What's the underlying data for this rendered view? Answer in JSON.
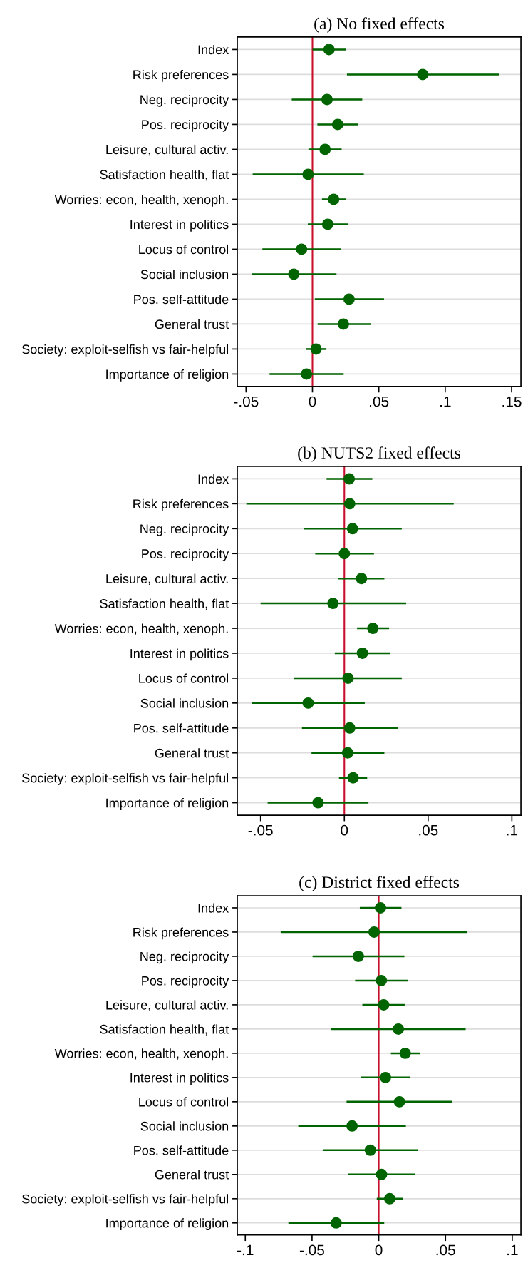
{
  "chart_data": [
    {
      "type": "scatter",
      "orientation": "horizontal",
      "title": "(a) No fixed effects",
      "categories": [
        "Index",
        "Risk preferences",
        "Neg. reciprocity",
        "Pos. reciprocity",
        "Leisure, cultural activ.",
        "Satisfaction health, flat",
        "Worries: econ, health, xenoph.",
        "Interest in politics",
        "Locus of control",
        "Social inclusion",
        "Pos. self-attitude",
        "General trust",
        "Society: exploit-selfish vs fair-helpful",
        "Importance of religion"
      ],
      "series": [
        {
          "color": "#006400",
          "values": [
            0.0125,
            0.083,
            0.011,
            0.019,
            0.0095,
            -0.0033,
            0.016,
            0.0115,
            -0.0082,
            -0.014,
            0.0276,
            0.0233,
            0.0027,
            -0.0045
          ],
          "errors": [
            [
              0.0,
              0.0255
            ],
            [
              0.026,
              0.1407
            ],
            [
              -0.0156,
              0.0375
            ],
            [
              0.0037,
              0.0344
            ],
            [
              -0.003,
              0.022
            ],
            [
              -0.045,
              0.0387
            ],
            [
              0.0072,
              0.025
            ],
            [
              -0.0035,
              0.0268
            ],
            [
              -0.0377,
              0.0216
            ],
            [
              -0.0457,
              0.0181
            ],
            [
              0.0018,
              0.0539
            ],
            [
              0.0039,
              0.0438
            ],
            [
              -0.0049,
              0.0105
            ],
            [
              -0.0323,
              0.0235
            ]
          ]
        }
      ],
      "xlim": [
        -0.0566,
        0.157
      ],
      "xticks": [
        {
          "value": -0.05,
          "label": "-.05"
        },
        0,
        {
          "value": 0.05,
          "label": ".05"
        },
        {
          "value": 0.1,
          "label": ".1"
        },
        {
          "value": 0.15,
          "label": ".15"
        }
      ],
      "ref_lines": [
        {
          "axis": "x",
          "value": 0,
          "color": "#c8102e"
        }
      ],
      "grid": "y",
      "marker": "circle"
    },
    {
      "type": "scatter",
      "orientation": "horizontal",
      "title": "(b) NUTS2 fixed effects",
      "categories": [
        "Index",
        "Risk preferences",
        "Neg. reciprocity",
        "Pos. reciprocity",
        "Leisure, cultural activ.",
        "Satisfaction health, flat",
        "Worries: econ, health, xenoph.",
        "Interest in politics",
        "Locus of control",
        "Social inclusion",
        "Pos. self-attitude",
        "General trust",
        "Society: exploit-selfish vs fair-helpful",
        "Importance of religion"
      ],
      "series": [
        {
          "color": "#006400",
          "values": [
            0.0029,
            0.0032,
            0.0049,
            0.0,
            0.0102,
            -0.0068,
            0.017,
            0.0108,
            0.0022,
            -0.0216,
            0.0032,
            0.002,
            0.0052,
            -0.0157
          ],
          "errors": [
            [
              -0.0106,
              0.0167
            ],
            [
              -0.0585,
              0.0653
            ],
            [
              -0.0242,
              0.0343
            ],
            [
              -0.0174,
              0.0177
            ],
            [
              -0.0035,
              0.0239
            ],
            [
              -0.05,
              0.0369
            ],
            [
              0.0076,
              0.0267
            ],
            [
              -0.0057,
              0.0273
            ],
            [
              -0.0299,
              0.0343
            ],
            [
              -0.0554,
              0.0122
            ],
            [
              -0.0253,
              0.0319
            ],
            [
              -0.0196,
              0.0239
            ],
            [
              -0.0032,
              0.0136
            ],
            [
              -0.0458,
              0.0144
            ]
          ]
        }
      ],
      "xlim": [
        -0.0639,
        0.1054
      ],
      "xticks": [
        {
          "value": -0.05,
          "label": "-.05"
        },
        0,
        {
          "value": 0.05,
          "label": ".05"
        },
        {
          "value": 0.1,
          "label": ".1"
        }
      ],
      "ref_lines": [
        {
          "axis": "x",
          "value": 0,
          "color": "#c8102e"
        }
      ],
      "grid": "y",
      "marker": "circle"
    },
    {
      "type": "scatter",
      "orientation": "horizontal",
      "title": "(c) District fixed effects",
      "categories": [
        "Index",
        "Risk preferences",
        "Neg. reciprocity",
        "Pos. reciprocity",
        "Leisure, cultural activ.",
        "Satisfaction health, flat",
        "Worries: econ, health, xenoph.",
        "Interest in politics",
        "Locus of control",
        "Social inclusion",
        "Pos. self-attitude",
        "General trust",
        "Society: exploit-selfish vs fair-helpful",
        "Importance of religion"
      ],
      "series": [
        {
          "color": "#006400",
          "values": [
            0.0013,
            -0.0035,
            -0.0153,
            0.0019,
            0.0037,
            0.0147,
            0.0198,
            0.005,
            0.0155,
            -0.02,
            -0.0063,
            0.0021,
            0.0082,
            -0.0319
          ],
          "errors": [
            [
              -0.0142,
              0.017
            ],
            [
              -0.0735,
              0.0664
            ],
            [
              -0.0496,
              0.0192
            ],
            [
              -0.0177,
              0.0216
            ],
            [
              -0.0123,
              0.0194
            ],
            [
              -0.0356,
              0.0651
            ],
            [
              0.0091,
              0.0308
            ],
            [
              -0.0136,
              0.0237
            ],
            [
              -0.0241,
              0.0552
            ],
            [
              -0.0603,
              0.0203
            ],
            [
              -0.042,
              0.0295
            ],
            [
              -0.0231,
              0.0271
            ],
            [
              -0.0015,
              0.0179
            ],
            [
              -0.0677,
              0.0041
            ]
          ]
        }
      ],
      "xlim": [
        -0.106,
        0.1065
      ],
      "xticks": [
        {
          "value": -0.1,
          "label": "-.1"
        },
        {
          "value": -0.05,
          "label": "-.05"
        },
        0,
        {
          "value": 0.05,
          "label": ".05"
        },
        {
          "value": 0.1,
          "label": ".1"
        }
      ],
      "ref_lines": [
        {
          "axis": "x",
          "value": 0,
          "color": "#c8102e"
        }
      ],
      "grid": "y",
      "marker": "circle"
    }
  ]
}
